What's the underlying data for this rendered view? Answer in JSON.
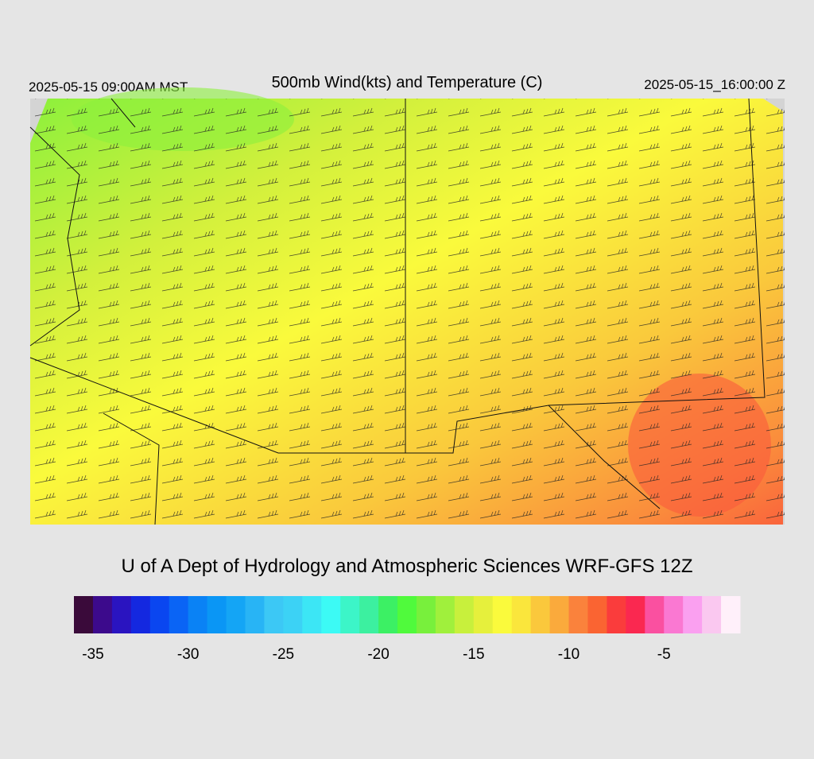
{
  "header": {
    "title": "500mb Wind(kts) and Temperature (C)",
    "valid_local": "2025-05-15 09:00AM MST",
    "valid_utc": "2025-05-15_16:00:00 Z"
  },
  "credit": "U of A Dept of Hydrology and Atmospheric Sciences WRF-GFS 12Z",
  "colorbar": {
    "lim": [
      -36,
      -1
    ],
    "ticks": [
      -35,
      -30,
      -25,
      -20,
      -15,
      -10,
      -5
    ],
    "colors": [
      "#3a0a3a",
      "#3c0a8c",
      "#2a14c0",
      "#1428e0",
      "#0a46f0",
      "#0a64f5",
      "#0a82f5",
      "#0a96f5",
      "#14a5f5",
      "#28b4f5",
      "#3cc8f5",
      "#3cd2f5",
      "#3ce6f5",
      "#3cfaf5",
      "#3cf5c8",
      "#3cf0a0",
      "#3cf064",
      "#50fa3c",
      "#78f03c",
      "#a0f03c",
      "#c8f03c",
      "#e6f03c",
      "#fafa3c",
      "#fae63c",
      "#fac83c",
      "#faaa3c",
      "#fa823c",
      "#fa6432",
      "#fa3c3c",
      "#fa2850",
      "#fa50a0",
      "#fa78d2",
      "#faa0f0",
      "#fac8f0",
      "#fff0fa"
    ]
  }
}
